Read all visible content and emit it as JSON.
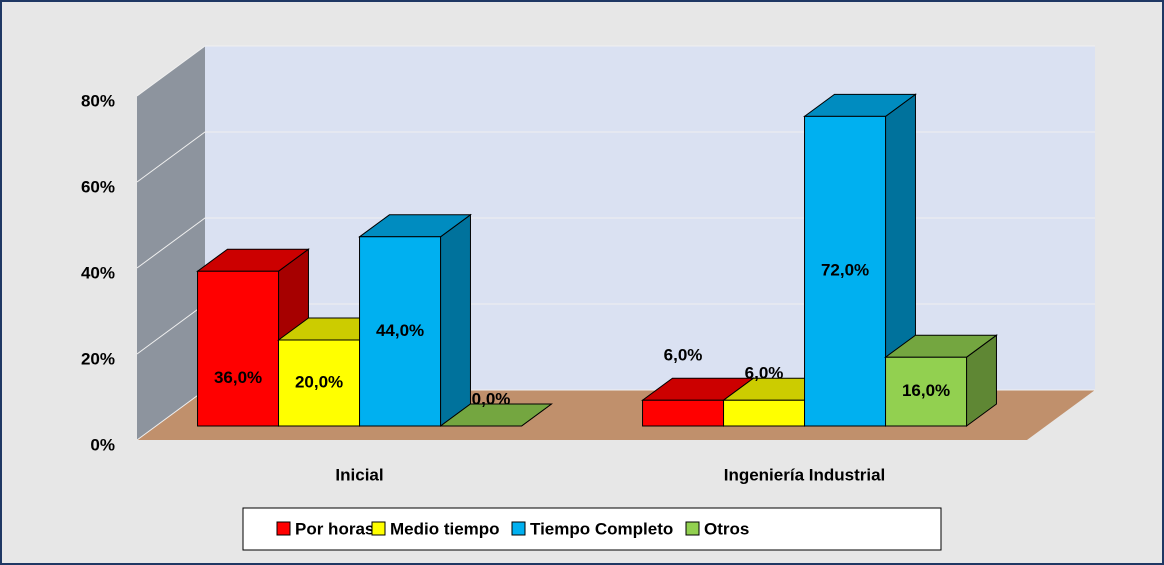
{
  "chart_data": {
    "type": "bar3d",
    "categories": [
      "Inicial",
      "Ingeniería Industrial"
    ],
    "series": [
      {
        "name": "Por horas",
        "color": "#ff0000",
        "values": [
          36,
          6
        ],
        "value_labels": [
          "36,0%",
          "6,0%"
        ]
      },
      {
        "name": "Medio tiempo",
        "color": "#ffff00",
        "values": [
          20,
          6
        ],
        "value_labels": [
          "20,0%",
          "6,0%"
        ]
      },
      {
        "name": "Tiempo Completo",
        "color": "#00b0f0",
        "values": [
          44,
          72
        ],
        "value_labels": [
          "44,0%",
          "72,0%"
        ]
      },
      {
        "name": "Otros",
        "color": "#92d050",
        "values": [
          0,
          16
        ],
        "value_labels": [
          "0,0%",
          "16,0%"
        ]
      }
    ],
    "ylim": [
      0,
      80
    ],
    "yticks": [
      {
        "value": 0,
        "label": "0%"
      },
      {
        "value": 20,
        "label": "20%"
      },
      {
        "value": 40,
        "label": "40%"
      },
      {
        "value": 60,
        "label": "60%"
      },
      {
        "value": 80,
        "label": "80%"
      }
    ],
    "grid": true,
    "legend": "bottom"
  }
}
